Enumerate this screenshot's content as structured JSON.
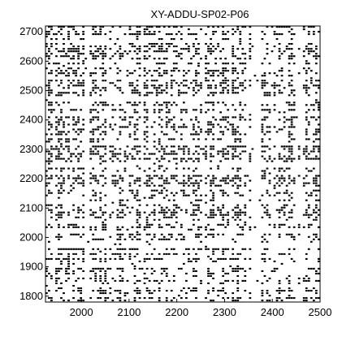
{
  "chart_data": {
    "type": "scatter",
    "title": "XY-ADDU-SP02-P06",
    "xlabel": "",
    "ylabel": "",
    "xlim": [
      1925,
      2500
    ],
    "ylim": [
      1780,
      2720
    ],
    "xticks": [
      {
        "value": 2000,
        "label": "2000"
      },
      {
        "value": 2100,
        "label": "2100"
      },
      {
        "value": 2200,
        "label": "2200"
      },
      {
        "value": 2300,
        "label": "2300"
      },
      {
        "value": 2400,
        "label": "2400"
      },
      {
        "value": 2500,
        "label": "2500"
      }
    ],
    "yticks": [
      {
        "value": 1800,
        "label": "1800"
      },
      {
        "value": 1900,
        "label": "1900"
      },
      {
        "value": 2000,
        "label": "2000"
      },
      {
        "value": 2100,
        "label": "2100"
      },
      {
        "value": 2200,
        "label": "2200"
      },
      {
        "value": 2300,
        "label": "2300"
      },
      {
        "value": 2400,
        "label": "2400"
      },
      {
        "value": 2500,
        "label": "2500"
      },
      {
        "value": 2600,
        "label": "2600"
      },
      {
        "value": 2700,
        "label": "2700"
      }
    ],
    "grid": false,
    "marker_color": "#000000",
    "description_note": "recurrence plot: dense black dot pattern over full range"
  }
}
